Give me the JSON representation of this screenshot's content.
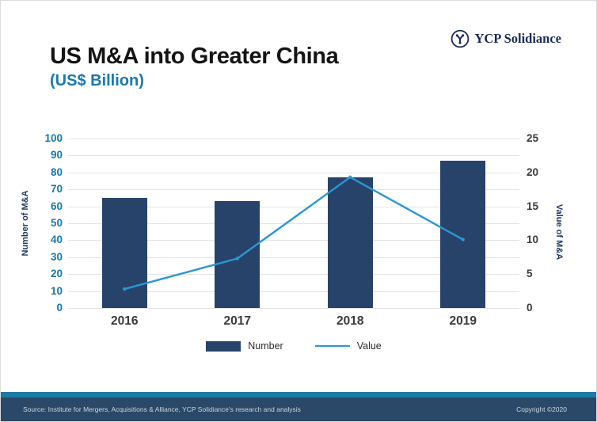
{
  "header": {
    "title": "US M&A into Greater China",
    "subtitle": "(US$ Billion)",
    "logo_text": "YCP Solidiance"
  },
  "chart_data": {
    "type": "combo",
    "categories": [
      "2016",
      "2017",
      "2018",
      "2019"
    ],
    "series": [
      {
        "name": "Number",
        "type": "bar",
        "axis": "left",
        "values": [
          65,
          63,
          77,
          87
        ],
        "color": "#274369"
      },
      {
        "name": "Value",
        "type": "line",
        "axis": "right",
        "values": [
          2.8,
          7.3,
          19.3,
          10.1
        ],
        "color": "#2a97d4"
      }
    ],
    "left_axis": {
      "label": "Number of M&A",
      "min": 0,
      "max": 100,
      "tick_step": 10
    },
    "right_axis": {
      "label": "Value of M&A",
      "min": 0,
      "max": 25,
      "tick_step": 5
    },
    "grid": true,
    "legend_position": "bottom"
  },
  "legend": {
    "items": [
      {
        "label": "Number",
        "swatch": "bar",
        "color": "#274369"
      },
      {
        "label": "Value",
        "swatch": "line",
        "color": "#2a97d4"
      }
    ]
  },
  "footer": {
    "source": "Source: Institute for Mergers, Acquisitions & Alliance, YCP Solidiance's research and analysis",
    "copyright": "Copyright ©2020"
  },
  "colors": {
    "title": "#141414",
    "accent_teal": "#1879b2",
    "bar_navy": "#274369",
    "line_blue": "#2a97d4",
    "axis_title_navy": "#1f3864",
    "gridline": "#e4e4e4",
    "footer_stripe": "#1b7ba3",
    "footer_bar": "#2a4867",
    "logo_navy": "#1b2b56"
  }
}
